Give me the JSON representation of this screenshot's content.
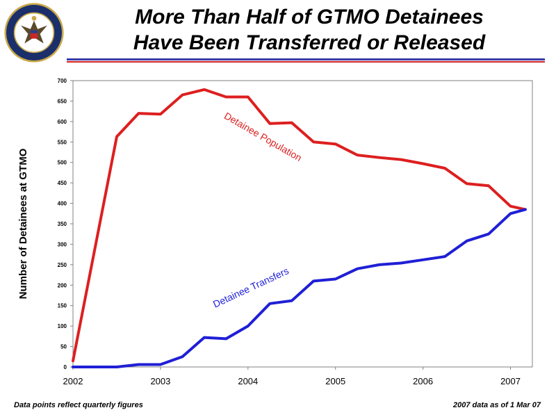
{
  "header": {
    "title_line1": "More Than Half of GTMO Detainees",
    "title_line2": "Have Been Transferred or Released",
    "seal_text": "DEPARTMENT OF DEFENSE • UNITED STATES OF AMERICA"
  },
  "footer": {
    "left_note": "Data points reflect quarterly figures",
    "right_note": "2007 data as of 1 Mar 07"
  },
  "colors": {
    "population": "#dd1f1f",
    "transfers": "#1f1fd6",
    "accent_blue": "#3a3aa8",
    "accent_red": "#d42020"
  },
  "chart_data": {
    "type": "line",
    "title": "More Than Half of GTMO Detainees Have Been Transferred or Released",
    "xlabel": "",
    "ylabel": "Number of Detainees at GTMO",
    "xlim": [
      2002.0,
      2007.25
    ],
    "ylim": [
      0,
      700
    ],
    "x_ticks": [
      "2002",
      "2003",
      "2004",
      "2005",
      "2006",
      "2007"
    ],
    "y_ticks": [
      0,
      50,
      100,
      150,
      200,
      250,
      300,
      350,
      400,
      450,
      500,
      550,
      600,
      650,
      700
    ],
    "grid": false,
    "legend": "inline labels",
    "series": [
      {
        "name": "Detainee Population",
        "x": [
          2002.0,
          2002.5,
          2002.75,
          2003.0,
          2003.25,
          2003.5,
          2003.75,
          2004.0,
          2004.25,
          2004.5,
          2004.75,
          2005.0,
          2005.25,
          2005.5,
          2005.75,
          2006.0,
          2006.25,
          2006.5,
          2006.75,
          2007.0,
          2007.17
        ],
        "values": [
          15,
          563,
          620,
          618,
          665,
          678,
          660,
          660,
          595,
          597,
          550,
          545,
          518,
          512,
          507,
          497,
          486,
          448,
          443,
          393,
          385
        ]
      },
      {
        "name": "Detainee Transfers",
        "x": [
          2002.0,
          2002.5,
          2002.75,
          2003.0,
          2003.25,
          2003.5,
          2003.75,
          2004.0,
          2004.25,
          2004.5,
          2004.75,
          2005.0,
          2005.25,
          2005.5,
          2005.75,
          2006.0,
          2006.25,
          2006.5,
          2006.75,
          2007.0,
          2007.17
        ],
        "values": [
          0,
          0,
          6,
          6,
          25,
          72,
          69,
          100,
          155,
          162,
          210,
          215,
          240,
          250,
          254,
          262,
          270,
          308,
          325,
          375,
          385
        ]
      }
    ]
  }
}
